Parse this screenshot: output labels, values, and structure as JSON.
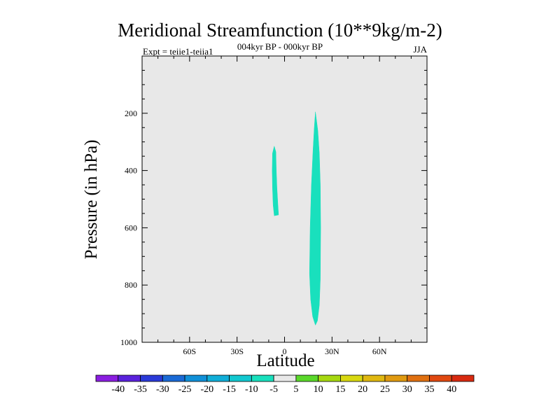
{
  "chart_data": {
    "type": "contour",
    "title": "Meridional Streamfunction (10**9kg/m-2)",
    "subtitle": "004kyr BP - 000kyr BP",
    "left_label": "Expt = teiie1-teiia1",
    "right_label": "JJA",
    "xlabel": "Latitude",
    "ylabel": "Pressure (in hPa)",
    "xlim": [
      -90,
      90
    ],
    "ylim": [
      1000,
      0
    ],
    "x_ticks": [
      {
        "value": -60,
        "label": "60S"
      },
      {
        "value": -30,
        "label": "30S"
      },
      {
        "value": 0,
        "label": "0"
      },
      {
        "value": 30,
        "label": "30N"
      },
      {
        "value": 60,
        "label": "60N"
      }
    ],
    "y_ticks": [
      {
        "value": 200,
        "label": "200"
      },
      {
        "value": 400,
        "label": "400"
      },
      {
        "value": 600,
        "label": "600"
      },
      {
        "value": 800,
        "label": "800"
      },
      {
        "value": 1000,
        "label": "1000"
      }
    ],
    "plot_background": "#e8e8e8",
    "regions": [
      {
        "name": "",
        "level": "-10 to -5",
        "color": "#19e0bd",
        "polygon": [
          [
            -6.5,
            315
          ],
          [
            -5.5,
            335
          ],
          [
            -5.2,
            400
          ],
          [
            -4.8,
            460
          ],
          [
            -4.2,
            520
          ],
          [
            -3.8,
            555
          ],
          [
            -6.5,
            558
          ],
          [
            -7.2,
            520
          ],
          [
            -7.6,
            460
          ],
          [
            -7.8,
            400
          ],
          [
            -7.6,
            340
          ]
        ]
      },
      {
        "name": "",
        "level": "-10 to -5",
        "color": "#19e0bd",
        "polygon": [
          [
            19.5,
            195
          ],
          [
            21.0,
            260
          ],
          [
            22.0,
            340
          ],
          [
            22.6,
            450
          ],
          [
            22.8,
            600
          ],
          [
            22.6,
            780
          ],
          [
            22.0,
            870
          ],
          [
            20.8,
            925
          ],
          [
            19.5,
            940
          ],
          [
            17.8,
            910
          ],
          [
            16.5,
            850
          ],
          [
            15.8,
            760
          ],
          [
            16.2,
            600
          ],
          [
            17.0,
            450
          ],
          [
            18.0,
            330
          ],
          [
            18.8,
            250
          ]
        ]
      }
    ],
    "colorbar": {
      "labels": [
        "-40",
        "-35",
        "-30",
        "-25",
        "-20",
        "-15",
        "-10",
        "-5",
        "5",
        "10",
        "15",
        "20",
        "25",
        "30",
        "35",
        "40"
      ],
      "colors": [
        "#8a1ee0",
        "#5a22dc",
        "#2a3ad8",
        "#1a6ad6",
        "#1090d8",
        "#10aed8",
        "#12c8d0",
        "#19e0bd",
        "#e8e8e8",
        "#5ad82a",
        "#a6d810",
        "#d8d810",
        "#e0b810",
        "#e09a10",
        "#e07010",
        "#e04810",
        "#d82a10"
      ]
    }
  }
}
